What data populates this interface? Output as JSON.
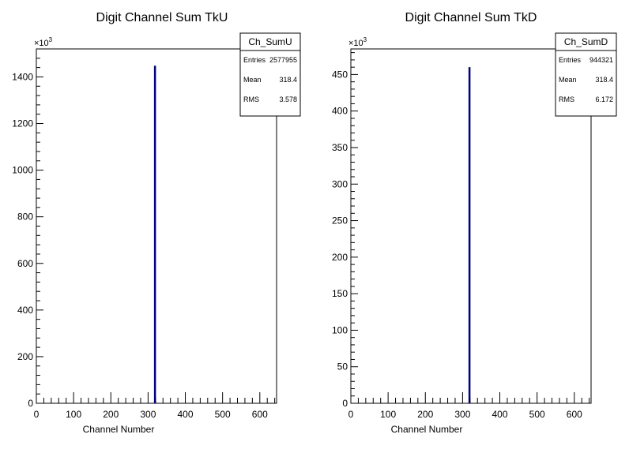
{
  "chart_data": [
    {
      "type": "bar",
      "title": "Digit Channel Sum TkU",
      "xlabel": "Channel Number",
      "ylabel": "",
      "exponent_label": "×10",
      "exponent_power": "3",
      "xlim": [
        0,
        645
      ],
      "ylim": [
        0,
        1520
      ],
      "xticks": [
        0,
        100,
        200,
        300,
        400,
        500,
        600
      ],
      "yticks": [
        0,
        200,
        400,
        600,
        800,
        1000,
        1200,
        1400
      ],
      "x": [
        318
      ],
      "values": [
        1448
      ],
      "bar_color": "#000080",
      "stats": {
        "name": "Ch_SumU",
        "rows": [
          {
            "label": "Entries",
            "value": "2577955"
          },
          {
            "label": "Mean",
            "value": "318.4"
          },
          {
            "label": "RMS",
            "value": "3.578"
          }
        ]
      }
    },
    {
      "type": "bar",
      "title": "Digit Channel Sum TkD",
      "xlabel": "Channel Number",
      "ylabel": "",
      "exponent_label": "×10",
      "exponent_power": "3",
      "xlim": [
        0,
        645
      ],
      "ylim": [
        0,
        485
      ],
      "xticks": [
        0,
        100,
        200,
        300,
        400,
        500,
        600
      ],
      "yticks": [
        0,
        50,
        100,
        150,
        200,
        250,
        300,
        350,
        400,
        450
      ],
      "x": [
        318
      ],
      "values": [
        460
      ],
      "bar_color": "#000080",
      "stats": {
        "name": "Ch_SumD",
        "rows": [
          {
            "label": "Entries",
            "value": "944321"
          },
          {
            "label": "Mean",
            "value": "318.4"
          },
          {
            "label": "RMS",
            "value": "6.172"
          }
        ]
      }
    }
  ]
}
